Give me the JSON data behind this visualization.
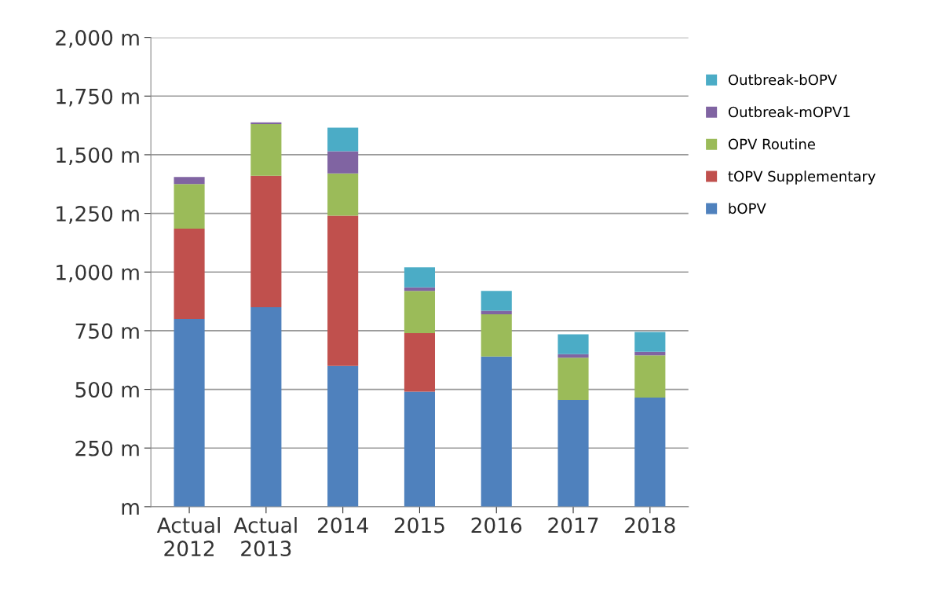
{
  "chart_data": {
    "type": "bar",
    "stacked": true,
    "categories": [
      "Actual\n2012",
      "Actual\n2013",
      "2014",
      "2015",
      "2016",
      "2017",
      "2018"
    ],
    "series": [
      {
        "name": "bOPV",
        "color": "#4f81bd",
        "values": [
          800,
          850,
          600,
          490,
          640,
          455,
          465
        ]
      },
      {
        "name": "tOPV Supplementary",
        "color": "#c0504d",
        "values": [
          385,
          560,
          640,
          250,
          null,
          null,
          null
        ]
      },
      {
        "name": "OPV Routine",
        "color": "#9bbb59",
        "values": [
          190,
          220,
          180,
          180,
          180,
          180,
          180
        ]
      },
      {
        "name": "Outbreak-mOPV1",
        "color": "#8064a2",
        "values": [
          30,
          8,
          95,
          15,
          15,
          15,
          15
        ]
      },
      {
        "name": "Outbreak-bOPV",
        "color": "#4bacc6",
        "values": [
          null,
          null,
          100,
          85,
          85,
          85,
          85
        ]
      }
    ],
    "ylim": [
      0,
      2000
    ],
    "yticks": [
      {
        "value": 0,
        "label": "m"
      },
      {
        "value": 250,
        "label": "250 m"
      },
      {
        "value": 500,
        "label": "500 m"
      },
      {
        "value": 750,
        "label": "750 m"
      },
      {
        "value": 1000,
        "label": "1,000 m"
      },
      {
        "value": 1250,
        "label": "1,250 m"
      },
      {
        "value": 1500,
        "label": "1,500 m"
      },
      {
        "value": 1750,
        "label": "1,750 m"
      },
      {
        "value": 2000,
        "label": "2,000 m"
      }
    ],
    "grid": "y",
    "legend": "right"
  }
}
